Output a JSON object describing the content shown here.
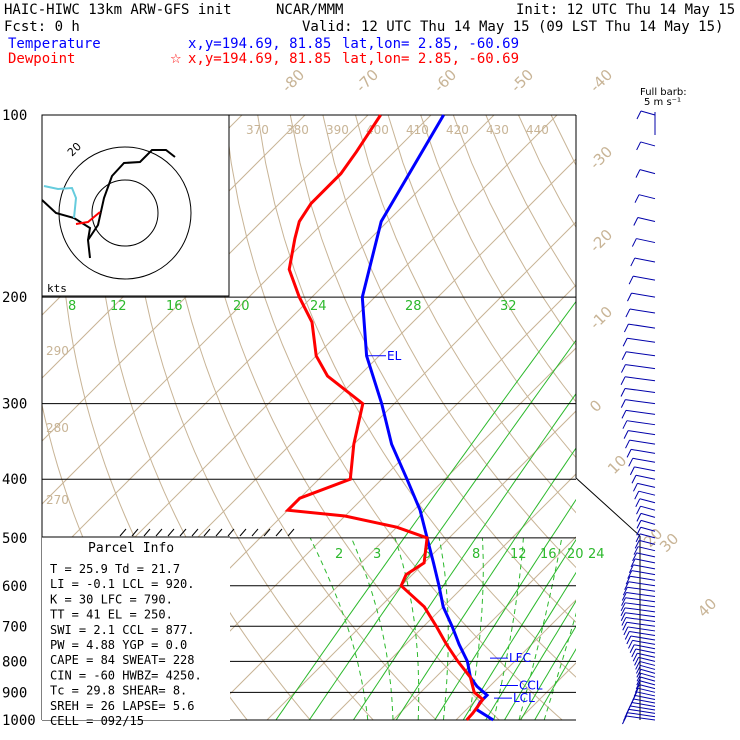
{
  "header": {
    "model": "HAIC-HIWC 13km ARW-GFS init",
    "org": "NCAR/MMM",
    "init": "Init: 12 UTC Thu 14 May 15",
    "fcst": "Fcst:     0 h",
    "valid": "Valid: 12 UTC Thu 14 May 15 (09 LST Thu 14 May 15)",
    "temp_label": "Temperature",
    "dew_label": "Dewpoint",
    "temp_loc": "x,y=194.69, 81.85",
    "dew_loc": "x,y=194.69, 81.85",
    "latlon": "lat,lon=  2.85, -60.69",
    "star": "☆",
    "barb_key": [
      "Full barb:",
      "5 m s⁻¹"
    ]
  },
  "colors": {
    "temperature": "#0000ff",
    "dewpoint": "#ff0000",
    "isotherm": "#c8b496",
    "mixing_ratio": "#2db92d",
    "wind": "#0000aa",
    "hodo_cyan": "#66ccdd"
  },
  "parcel": {
    "title": "Parcel Info",
    "lines": [
      "T  =   25.9  Td =  21.7",
      "LI =   -0.1  LCL =  920.",
      "K  =     30  LFC =  790.",
      "TT =     41  EL  =  250.",
      "SWI =   2.1  CCL =  877.",
      "PW =   4.88  YGP =   0.0",
      "CAPE =   84  SWEAT=  228",
      "CIN =   -60  HWBZ= 4250.",
      "Tc =   29.8  SHEAR=   8.",
      "SREH =   26  LAPSE=  5.6",
      "CELL = 092/15"
    ]
  },
  "levels": {
    "EL": "EL",
    "LFC": "LFC",
    "CCL": "CCL",
    "LCL": "LCL"
  },
  "hodograph": {
    "units": "kts",
    "ring_label": "20"
  },
  "chart_data": {
    "type": "line",
    "title": "",
    "pressure_ticks": [
      100,
      200,
      300,
      400,
      500,
      600,
      700,
      800,
      900,
      1000
    ],
    "isotherm_labels": [
      -80,
      -70,
      -60,
      -50,
      -40,
      -30,
      -20,
      -10,
      0,
      10,
      20,
      30,
      40
    ],
    "theta_labels": [
      370,
      380,
      390,
      400,
      410,
      420,
      430,
      440
    ],
    "theta_left_labels": [
      290,
      280,
      270
    ],
    "mixing_ratio_labels_upper": [
      8,
      12,
      16,
      20,
      24,
      28,
      32
    ],
    "mixing_ratio_labels_lower": [
      2,
      3,
      5,
      8,
      12,
      16,
      20,
      24
    ],
    "series": [
      {
        "name": "Temperature",
        "pressure": [
          1000,
          960,
          935,
          910,
          880,
          850,
          800,
          750,
          700,
          650,
          600,
          550,
          500,
          450,
          400,
          350,
          300,
          250,
          200,
          150,
          100
        ],
        "values": [
          25.9,
          21.5,
          21.0,
          21.0,
          18.0,
          15.5,
          12.5,
          8.5,
          4.5,
          0.0,
          -4.0,
          -8.5,
          -13.5,
          -19.0,
          -26.0,
          -34.0,
          -42.0,
          -52.0,
          -62.0,
          -71.0,
          -78.0
        ]
      },
      {
        "name": "Dewpoint",
        "pressure": [
          1000,
          975,
          950,
          925,
          900,
          850,
          800,
          750,
          700,
          650,
          600,
          575,
          550,
          500,
          480,
          460,
          450,
          430,
          400,
          350,
          300,
          270,
          250,
          220,
          200,
          180,
          160,
          150,
          140,
          125,
          115,
          100
        ],
        "values": [
          21.7,
          21.6,
          21.3,
          21.0,
          18.5,
          15.5,
          11.0,
          6.5,
          2.0,
          -3.0,
          -10.0,
          -11.0,
          -10.0,
          -13.5,
          -20.0,
          -30.0,
          -40.0,
          -40.0,
          -35.0,
          -40.0,
          -45.0,
          -55.0,
          -60.0,
          -66.0,
          -72.0,
          -78.0,
          -82.0,
          -84.0,
          -85.0,
          -85.0,
          -86.0,
          -88.0
        ]
      }
    ],
    "wind_pressure_range": [
      100,
      1000
    ],
    "wind_unit": "m/s"
  }
}
